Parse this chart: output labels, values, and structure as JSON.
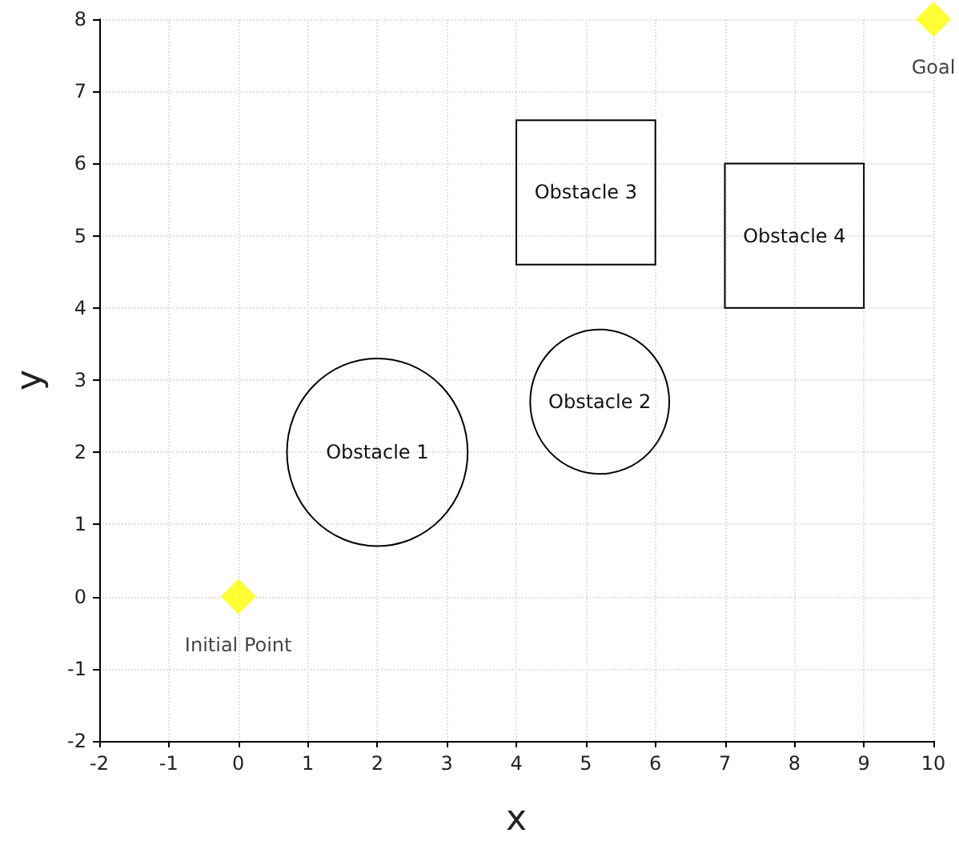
{
  "chart_data": {
    "type": "scatter",
    "xlabel": "x",
    "ylabel": "y",
    "xlim": [
      -2,
      10
    ],
    "xticks": [
      -2,
      -1,
      0,
      1,
      2,
      3,
      4,
      5,
      6,
      7,
      8,
      9,
      10
    ],
    "ylim": [
      -2,
      8
    ],
    "yticks": [
      -2,
      -1,
      0,
      1,
      2,
      3,
      4,
      5,
      6,
      7,
      8
    ],
    "grid": true,
    "marker": "diamond",
    "x": [
      0,
      10
    ],
    "values": [
      0,
      8
    ],
    "color": "#ffff00",
    "annotations": [
      "Obstacle 1",
      "Obstacle 2",
      "Obstacle 3",
      "Obstacle 4",
      {
        "text": "Initial Point",
        "x": 0,
        "y": 0
      },
      {
        "text": "Goal",
        "x": 10,
        "y": 8
      }
    ]
  }
}
